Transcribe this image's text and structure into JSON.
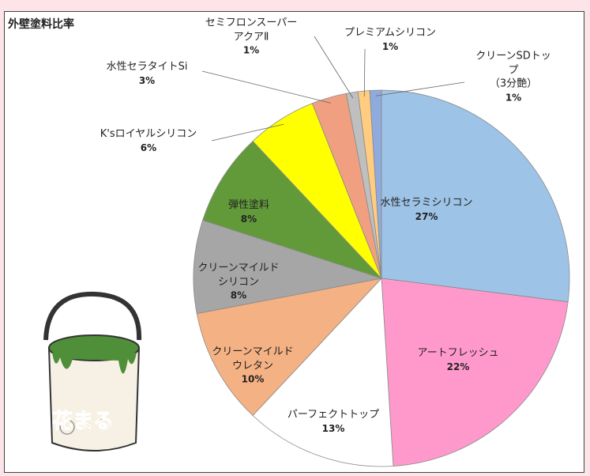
{
  "chart_data": {
    "type": "pie",
    "title": "外壁塗料比率",
    "categories": [
      "水性セラミシリコン",
      "アートフレッシュ",
      "パーフェクトトップ",
      "クリーンマイルド\nウレタン",
      "クリーンマイルド\nシリコン",
      "弾性塗料",
      "K'sロイヤルシリコン",
      "水性セラタイトSi",
      "セミフロンスーパー\nアクアⅡ",
      "プレミアムシリコン",
      "クリーンSDトップ\n（3分艶）"
    ],
    "values": [
      27,
      22,
      13,
      10,
      8,
      8,
      6,
      3,
      1,
      1,
      1
    ],
    "value_labels": [
      "27%",
      "22%",
      "13%",
      "10%",
      "8%",
      "8%",
      "6%",
      "3%",
      "1%",
      "1%",
      "1%"
    ],
    "colors": [
      "#9dc3e6",
      "#ff99cc",
      "#ffffff",
      "#f4b183",
      "#a6a6a6",
      "#629a3a",
      "#ffff00",
      "#f0a080",
      "#bfbfbf",
      "#ffcc80",
      "#8faadc"
    ]
  },
  "logo": {
    "text": "花まる"
  }
}
